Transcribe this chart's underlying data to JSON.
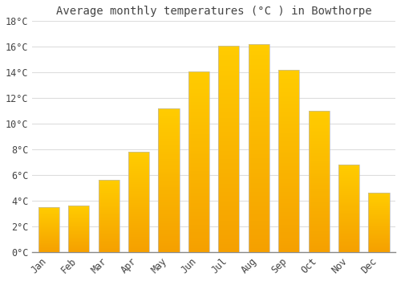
{
  "title": "Average monthly temperatures (°C ) in Bowthorpe",
  "months": [
    "Jan",
    "Feb",
    "Mar",
    "Apr",
    "May",
    "Jun",
    "Jul",
    "Aug",
    "Sep",
    "Oct",
    "Nov",
    "Dec"
  ],
  "values": [
    3.5,
    3.6,
    5.6,
    7.8,
    11.2,
    14.1,
    16.1,
    16.2,
    14.2,
    11.0,
    6.8,
    4.6
  ],
  "bar_color_top": "#FFCC00",
  "bar_color_bottom": "#F5A000",
  "bar_edge_color": "#BBBBBB",
  "background_color": "#FFFFFF",
  "grid_color": "#DDDDDD",
  "text_color": "#444444",
  "ylim": [
    0,
    18
  ],
  "ytick_values": [
    0,
    2,
    4,
    6,
    8,
    10,
    12,
    14,
    16,
    18
  ],
  "ytick_labels": [
    "0°C",
    "2°C",
    "4°C",
    "6°C",
    "8°C",
    "10°C",
    "12°C",
    "14°C",
    "16°C",
    "18°C"
  ],
  "title_fontsize": 10,
  "tick_fontsize": 8.5,
  "bar_width": 0.7
}
